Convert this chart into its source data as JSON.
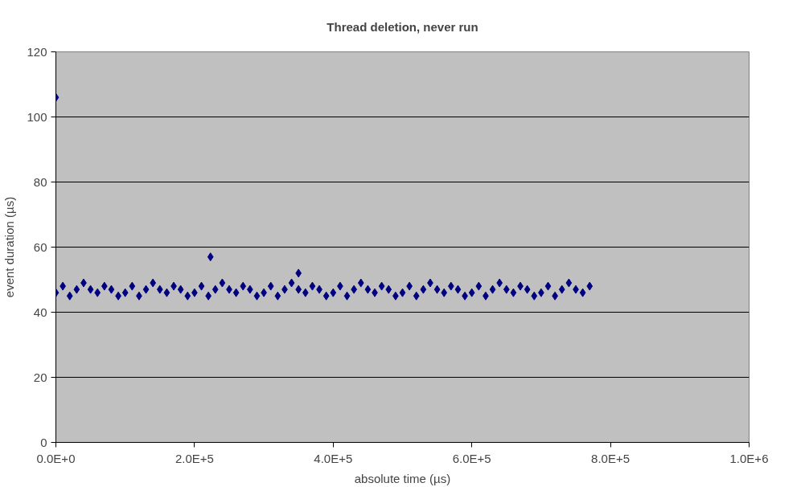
{
  "chart_data": {
    "type": "scatter",
    "title": "Thread deletion, never run",
    "xlabel": "absolute time (µs)",
    "ylabel": "event duration (µs)",
    "xlim": [
      0,
      1000000
    ],
    "xticks": [
      {
        "value": 0,
        "label": "0.0E+0"
      },
      {
        "value": 200000,
        "label": "2.0E+5"
      },
      {
        "value": 400000,
        "label": "4.0E+5"
      },
      {
        "value": 600000,
        "label": "6.0E+5"
      },
      {
        "value": 800000,
        "label": "8.0E+5"
      },
      {
        "value": 1000000,
        "label": "1.0E+6"
      }
    ],
    "ylim": [
      0,
      120
    ],
    "yticks": [
      0,
      20,
      40,
      60,
      80,
      100,
      120
    ],
    "grid": "y",
    "marker": "diamond",
    "series": [
      {
        "color": "#000080",
        "x": [
          0,
          10000,
          20000,
          30000,
          40000,
          50000,
          60000,
          70000,
          80000,
          90000,
          100000,
          110000,
          120000,
          130000,
          140000,
          150000,
          160000,
          170000,
          180000,
          190000,
          200000,
          210000,
          220000,
          230000,
          240000,
          250000,
          260000,
          270000,
          280000,
          290000,
          300000,
          310000,
          320000,
          330000,
          340000,
          350000,
          360000,
          370000,
          380000,
          390000,
          400000,
          410000,
          420000,
          430000,
          440000,
          450000,
          460000,
          470000,
          480000,
          490000,
          500000,
          510000,
          520000,
          530000,
          540000,
          550000,
          560000,
          570000,
          580000,
          590000,
          600000,
          610000,
          620000,
          630000,
          640000,
          650000,
          660000,
          670000,
          680000,
          690000,
          700000,
          710000,
          720000,
          730000,
          740000,
          750000,
          760000,
          770000,
          0,
          223000,
          350000
        ],
        "values": [
          46,
          48,
          45,
          47,
          49,
          47,
          46,
          48,
          47,
          45,
          46,
          48,
          45,
          47,
          49,
          47,
          46,
          48,
          47,
          45,
          46,
          48,
          45,
          47,
          49,
          47,
          46,
          48,
          47,
          45,
          46,
          48,
          45,
          47,
          49,
          47,
          46,
          48,
          47,
          45,
          46,
          48,
          45,
          47,
          49,
          47,
          46,
          48,
          47,
          45,
          46,
          48,
          45,
          47,
          49,
          47,
          46,
          48,
          47,
          45,
          46,
          48,
          45,
          47,
          49,
          47,
          46,
          48,
          47,
          45,
          46,
          48,
          45,
          47,
          49,
          47,
          46,
          48,
          106,
          57,
          52
        ]
      }
    ]
  }
}
